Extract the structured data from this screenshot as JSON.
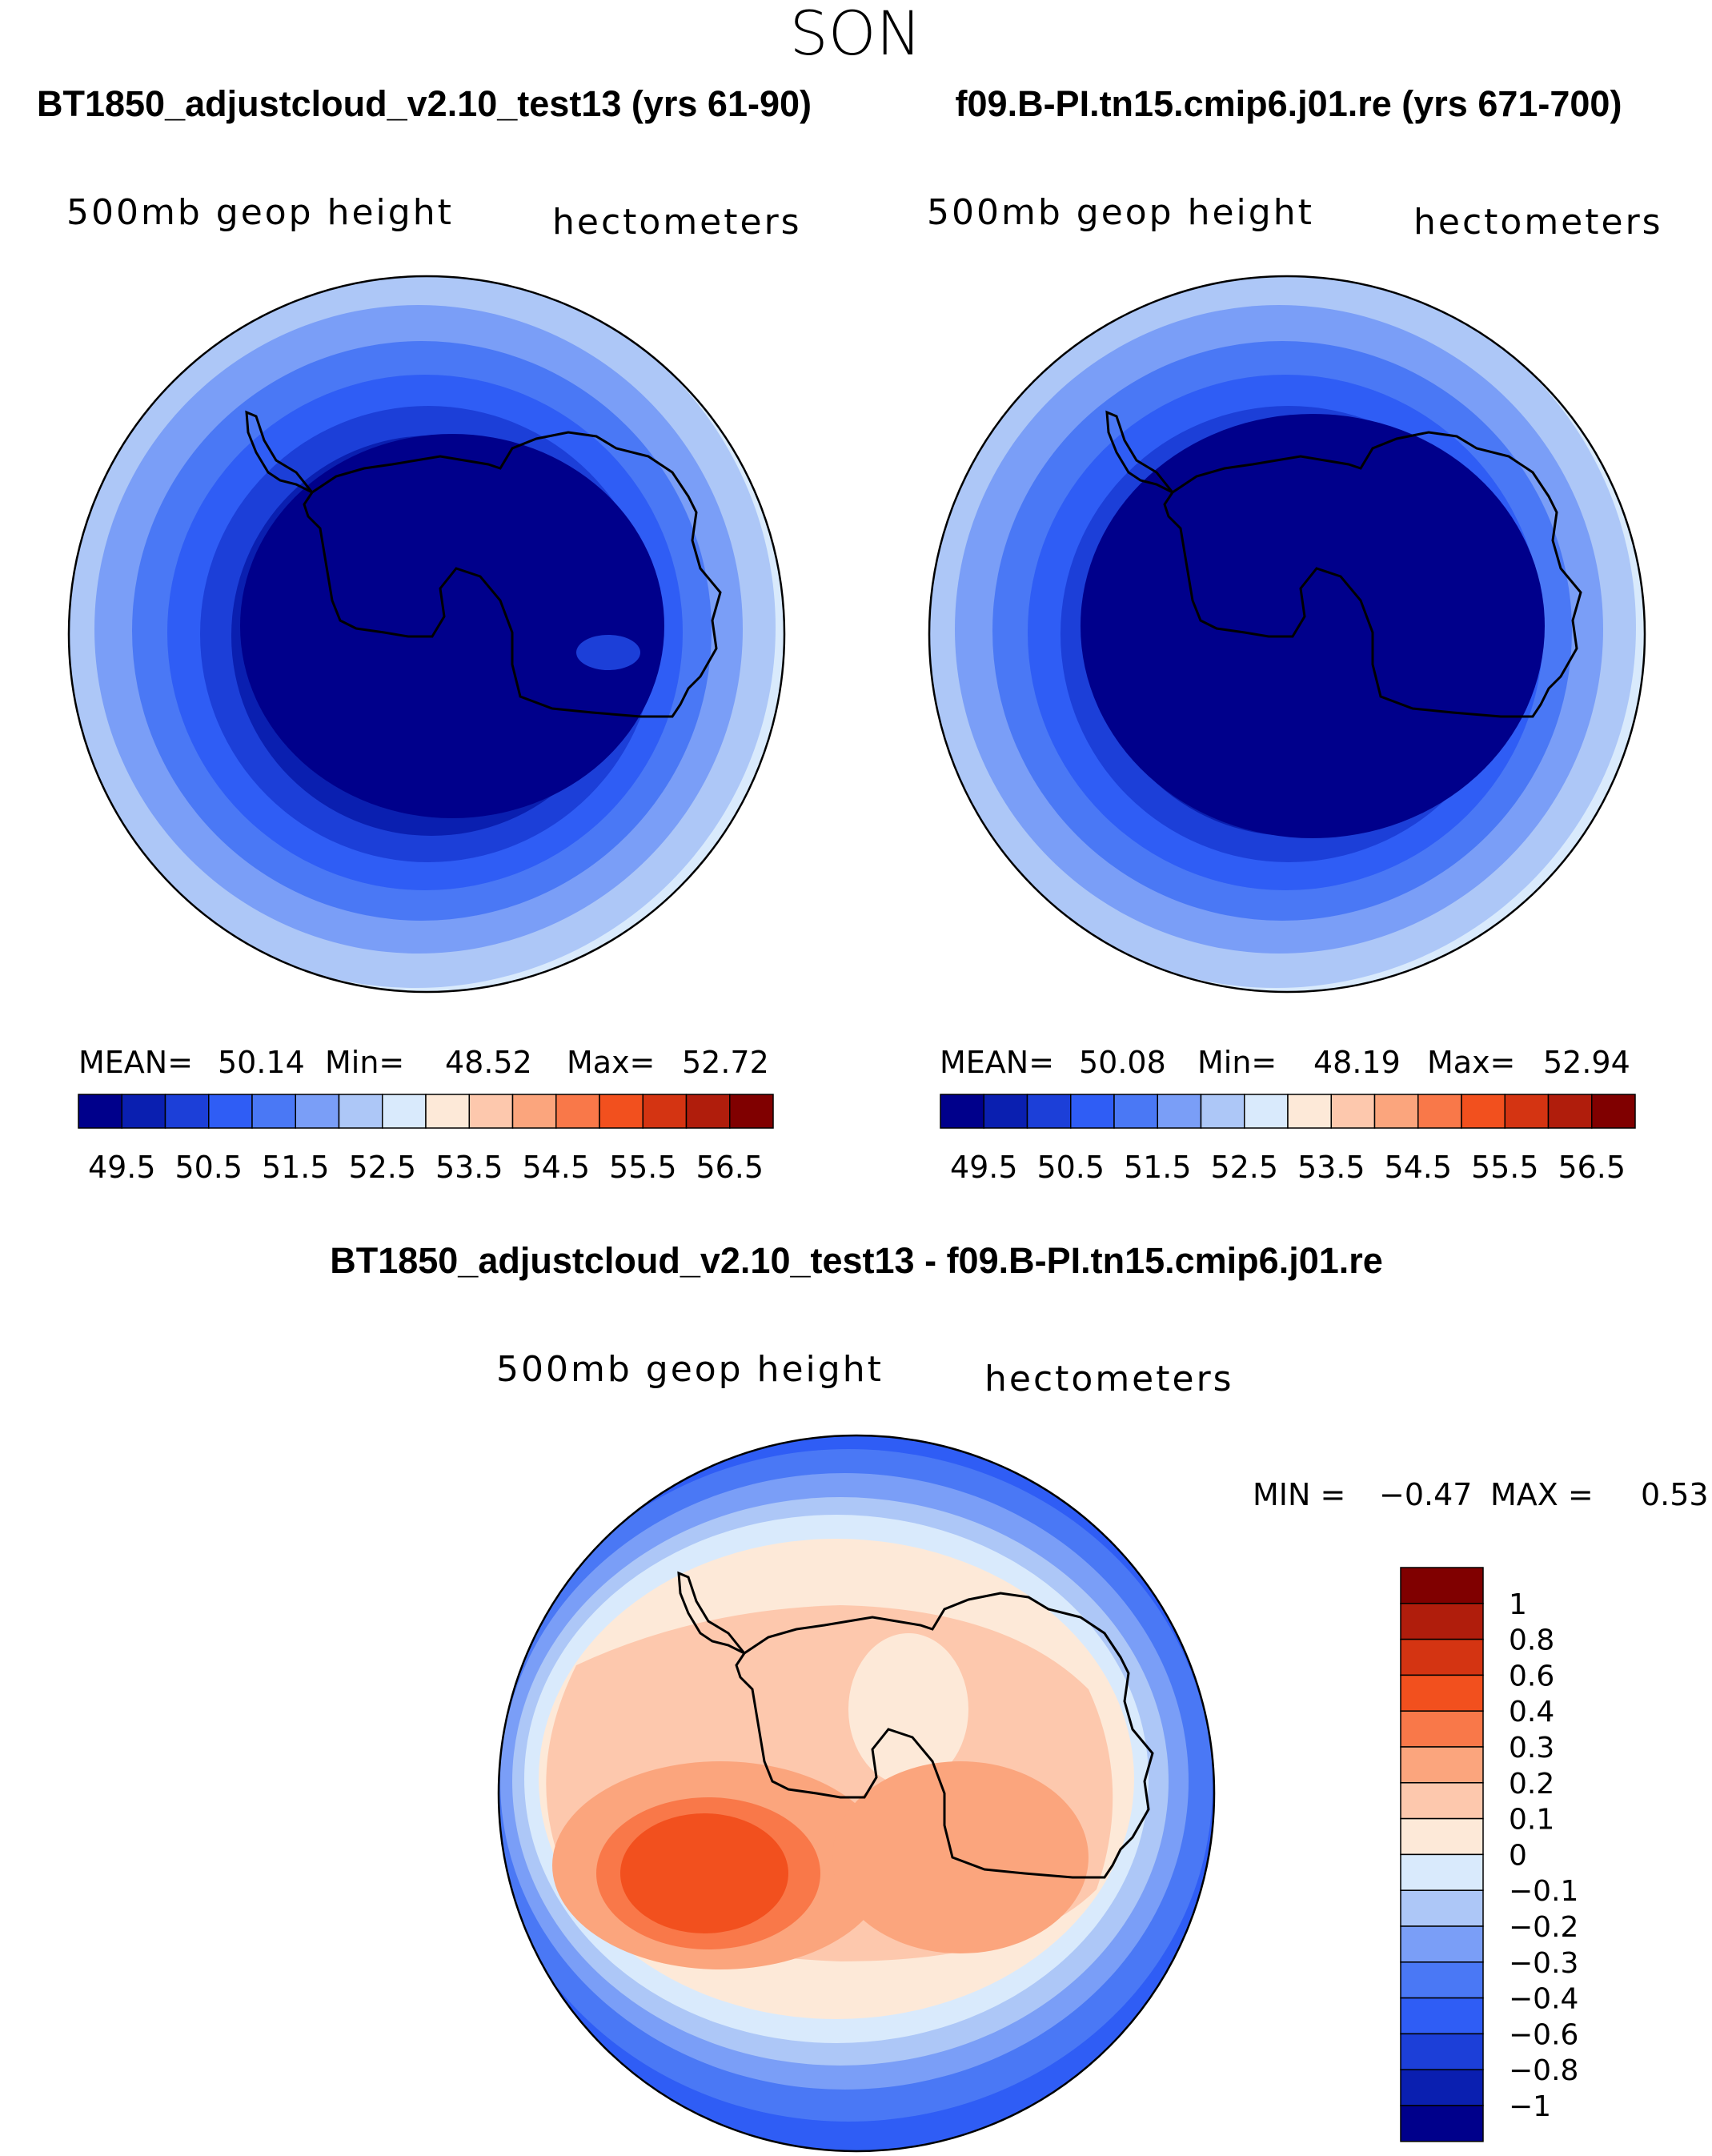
{
  "page": {
    "season": "SON",
    "panels": [
      {
        "case_title": "BT1850_adjustcloud_v2.10_test13 (yrs 61-90)",
        "variable": "500mb geop height",
        "units": "hectometers",
        "stats": {
          "mean_label": "MEAN=",
          "mean": "50.14",
          "min_label": "Min=",
          "min": "48.52",
          "max_label": "Max=",
          "max": "52.72"
        }
      },
      {
        "case_title": "f09.B-PI.tn15.cmip6.j01.re (yrs 671-700)",
        "variable": "500mb geop height",
        "units": "hectometers",
        "stats": {
          "mean_label": "MEAN=",
          "mean": "50.08",
          "min_label": "Min=",
          "min": "48.19",
          "max_label": "Max=",
          "max": "52.94"
        }
      }
    ],
    "diff": {
      "title": "BT1850_adjustcloud_v2.10_test13 - f09.B-PI.tn15.cmip6.j01.re",
      "variable": "500mb geop height",
      "units": "hectometers",
      "min_label": "MIN =",
      "min": "−0.47",
      "max_label": "MAX =",
      "max": "0.53"
    }
  },
  "colors": {
    "abs_scale": [
      "#00008b",
      "#0a1fb0",
      "#1c3fd8",
      "#2f5df5",
      "#4a78f5",
      "#7a9ef7",
      "#adc7f7",
      "#d9eafc",
      "#fde9d8",
      "#fdc8ad",
      "#fba57d",
      "#f97849",
      "#f2501e",
      "#d43412",
      "#b01d0c",
      "#800000"
    ],
    "diff_scale": [
      "#00008b",
      "#0a1fb0",
      "#1c3fd8",
      "#2f5df5",
      "#4a78f5",
      "#7a9ef7",
      "#adc7f7",
      "#d9eafc",
      "#fde9d8",
      "#fdc8ad",
      "#fba57d",
      "#f97849",
      "#f2501e",
      "#d43412",
      "#b01d0c",
      "#800000"
    ]
  },
  "chart_data": [
    {
      "type": "heatmap",
      "projection": "south-polar-stereographic",
      "title": "BT1850_adjustcloud_v2.10_test13 (yrs 61-90)",
      "variable": "500mb geop height",
      "units": "hectometers",
      "mean": 50.14,
      "min": 48.52,
      "max": 52.72,
      "contour_levels": [
        49.5,
        50,
        50.5,
        51,
        51.5,
        52,
        52.5,
        53,
        53.5,
        54,
        54.5,
        55,
        55.5,
        56,
        56.5
      ],
      "colorbar_tick_labels": [
        "49.5",
        "50.5",
        "51.5",
        "52.5",
        "53.5",
        "54.5",
        "55.5",
        "56.5"
      ]
    },
    {
      "type": "heatmap",
      "projection": "south-polar-stereographic",
      "title": "f09.B-PI.tn15.cmip6.j01.re (yrs 671-700)",
      "variable": "500mb geop height",
      "units": "hectometers",
      "mean": 50.08,
      "min": 48.19,
      "max": 52.94,
      "contour_levels": [
        49.5,
        50,
        50.5,
        51,
        51.5,
        52,
        52.5,
        53,
        53.5,
        54,
        54.5,
        55,
        55.5,
        56,
        56.5
      ],
      "colorbar_tick_labels": [
        "49.5",
        "50.5",
        "51.5",
        "52.5",
        "53.5",
        "54.5",
        "55.5",
        "56.5"
      ]
    },
    {
      "type": "heatmap",
      "projection": "south-polar-stereographic",
      "title": "BT1850_adjustcloud_v2.10_test13 - f09.B-PI.tn15.cmip6.j01.re",
      "variable": "500mb geop height",
      "units": "hectometers",
      "min": -0.47,
      "max": 0.53,
      "contour_levels": [
        -1,
        -0.8,
        -0.6,
        -0.4,
        -0.3,
        -0.2,
        -0.1,
        0,
        0.1,
        0.2,
        0.3,
        0.4,
        0.6,
        0.8,
        1
      ],
      "colorbar_tick_labels": [
        "1",
        "0.8",
        "0.6",
        "0.4",
        "0.3",
        "0.2",
        "0.1",
        "0",
        "−0.1",
        "−0.2",
        "−0.3",
        "−0.4",
        "−0.6",
        "−0.8",
        "−1"
      ]
    }
  ]
}
